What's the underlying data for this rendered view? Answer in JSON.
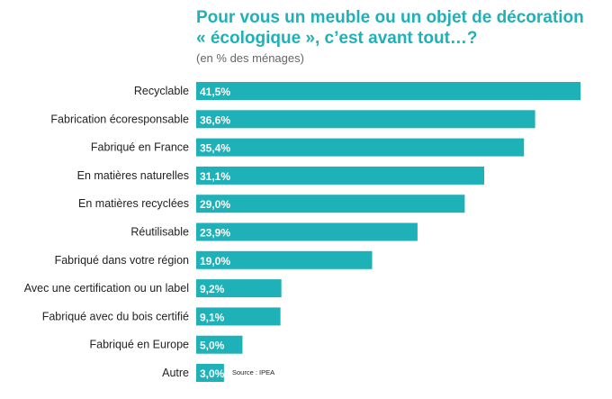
{
  "title": "Pour vous un meuble ou un objet de décoration\n« écologique », c’est avant tout…?",
  "subtitle": "(en % des ménages)",
  "source": "Source : IPEA",
  "colors": {
    "bar": "#1fb1b8",
    "title": "#1fb1b8",
    "label": "#222222",
    "value_label": "#ffffff"
  },
  "chart_data": {
    "type": "bar",
    "orientation": "horizontal",
    "categories": [
      "Recyclable",
      "Fabrication écoresponsable",
      "Fabriqué en France",
      "En matières naturelles",
      "En matières recyclées",
      "Réutilisable",
      "Fabriqué dans votre région",
      "Avec une certification ou un label",
      "Fabriqué avec du bois certifié",
      "Fabriqué en Europe",
      "Autre"
    ],
    "values": [
      41.5,
      36.6,
      35.4,
      31.1,
      29.0,
      23.9,
      19.0,
      9.2,
      9.1,
      5.0,
      3.0
    ],
    "value_labels": [
      "41,5%",
      "36,6%",
      "35,4%",
      "31,1%",
      "29,0%",
      "23,9%",
      "19,0%",
      "9,2%",
      "9,1%",
      "5,0%",
      "3,0%"
    ],
    "title": "Pour vous un meuble ou un objet de décoration « écologique », c’est avant tout…?",
    "subtitle": "(en % des ménages)",
    "xlim": [
      0,
      41.5
    ],
    "grid": false,
    "legend": "none"
  }
}
